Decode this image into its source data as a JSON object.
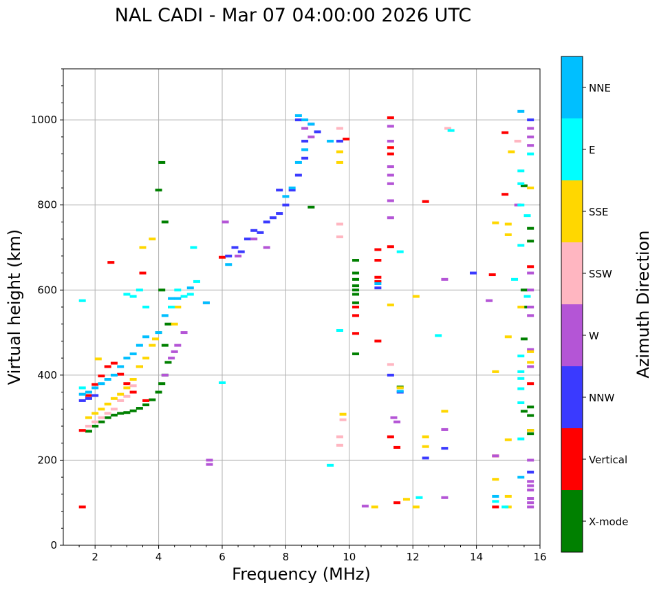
{
  "chart_data": {
    "type": "scatter",
    "title": "NAL CADI - Mar 07 04:00:00 2026 UTC",
    "xlabel": "Frequency (MHz)",
    "ylabel": "Virtual height (km)",
    "xlim": [
      1,
      16
    ],
    "ylim": [
      0,
      1120
    ],
    "xticks": [
      2,
      4,
      6,
      8,
      10,
      12,
      14,
      16
    ],
    "yticks": [
      0,
      200,
      400,
      600,
      800,
      1000
    ],
    "grid": true,
    "colorbar": {
      "label": "Azimuth Direction",
      "categories": [
        "X-mode",
        "Vertical",
        "NNW",
        "W",
        "SSW",
        "SSE",
        "E",
        "NNE"
      ],
      "colors": [
        "#008000",
        "#ff0000",
        "#3a3aff",
        "#b455d6",
        "#ffb6c1",
        "#ffd700",
        "#00ffff",
        "#00bfff"
      ]
    },
    "series": [
      {
        "name": "X-mode",
        "points": [
          [
            1.8,
            268
          ],
          [
            2,
            280
          ],
          [
            2.2,
            290
          ],
          [
            2.4,
            300
          ],
          [
            2.6,
            306
          ],
          [
            2.8,
            310
          ],
          [
            3,
            312
          ],
          [
            3.2,
            316
          ],
          [
            3.4,
            322
          ],
          [
            3.6,
            330
          ],
          [
            3.8,
            342
          ],
          [
            4,
            360
          ],
          [
            4.1,
            380
          ],
          [
            4.2,
            400
          ],
          [
            4.3,
            430
          ],
          [
            4.2,
            470
          ],
          [
            4.3,
            520
          ],
          [
            4.4,
            560
          ],
          [
            4.1,
            600
          ],
          [
            4.2,
            760
          ],
          [
            4,
            835
          ],
          [
            4.1,
            900
          ],
          [
            10.2,
            670
          ],
          [
            10.2,
            640
          ],
          [
            10.2,
            625
          ],
          [
            10.2,
            610
          ],
          [
            10.2,
            600
          ],
          [
            10.2,
            590
          ],
          [
            10.2,
            570
          ],
          [
            10.2,
            450
          ],
          [
            8.8,
            795
          ],
          [
            15.5,
            845
          ],
          [
            15.7,
            745
          ],
          [
            15.7,
            715
          ],
          [
            15.5,
            600
          ],
          [
            15.5,
            560
          ],
          [
            15.5,
            485
          ],
          [
            15.7,
            325
          ],
          [
            15.7,
            305
          ],
          [
            15.5,
            315
          ],
          [
            15.7,
            270
          ],
          [
            15.7,
            262
          ],
          [
            11.6,
            372
          ]
        ]
      },
      {
        "name": "Vertical",
        "points": [
          [
            1.6,
            90
          ],
          [
            1.6,
            270
          ],
          [
            1.8,
            352
          ],
          [
            2,
            378
          ],
          [
            2.2,
            398
          ],
          [
            2.4,
            420
          ],
          [
            2.6,
            428
          ],
          [
            2.8,
            402
          ],
          [
            3,
            380
          ],
          [
            3.2,
            360
          ],
          [
            3.4,
            420
          ],
          [
            3.6,
            340
          ],
          [
            3.5,
            640
          ],
          [
            2.5,
            665
          ],
          [
            6,
            677
          ],
          [
            10.2,
            498
          ],
          [
            10.2,
            560
          ],
          [
            10.2,
            540
          ],
          [
            10.9,
            695
          ],
          [
            10.9,
            670
          ],
          [
            10.9,
            630
          ],
          [
            10.9,
            620
          ],
          [
            10.9,
            480
          ],
          [
            11.3,
            1005
          ],
          [
            11.3,
            935
          ],
          [
            11.3,
            920
          ],
          [
            11.3,
            702
          ],
          [
            11.3,
            255
          ],
          [
            11.5,
            230
          ],
          [
            11.5,
            100
          ],
          [
            12.4,
            808
          ],
          [
            14.5,
            636
          ],
          [
            14.9,
            970
          ],
          [
            14.9,
            825
          ],
          [
            15.7,
            655
          ],
          [
            15.7,
            380
          ],
          [
            14.6,
            210
          ],
          [
            14.6,
            90
          ],
          [
            9.9,
            955
          ]
        ]
      },
      {
        "name": "NNW",
        "points": [
          [
            1.6,
            340
          ],
          [
            1.8,
            345
          ],
          [
            2,
            352
          ],
          [
            6.2,
            680
          ],
          [
            6.4,
            700
          ],
          [
            6.6,
            690
          ],
          [
            6.8,
            720
          ],
          [
            7,
            740
          ],
          [
            7.2,
            735
          ],
          [
            7.4,
            760
          ],
          [
            7.6,
            770
          ],
          [
            7.8,
            780
          ],
          [
            8,
            800
          ],
          [
            8.2,
            835
          ],
          [
            8.4,
            870
          ],
          [
            8.6,
            910
          ],
          [
            8.6,
            950
          ],
          [
            8.4,
            1000
          ],
          [
            8.8,
            990
          ],
          [
            9,
            972
          ],
          [
            7.8,
            835
          ],
          [
            10.9,
            605
          ],
          [
            11.3,
            400
          ],
          [
            11.6,
            360
          ],
          [
            12.4,
            205
          ],
          [
            13,
            228
          ],
          [
            13.9,
            640
          ],
          [
            15.7,
            1000
          ],
          [
            15.7,
            172
          ],
          [
            9.7,
            950
          ]
        ]
      },
      {
        "name": "W",
        "points": [
          [
            4.2,
            400
          ],
          [
            4.4,
            440
          ],
          [
            4.6,
            470
          ],
          [
            4.8,
            500
          ],
          [
            4.5,
            455
          ],
          [
            5.5,
            570
          ],
          [
            6.1,
            760
          ],
          [
            6.5,
            680
          ],
          [
            7,
            720
          ],
          [
            7.4,
            700
          ],
          [
            8.6,
            980
          ],
          [
            8.8,
            960
          ],
          [
            11.3,
            985
          ],
          [
            11.3,
            950
          ],
          [
            11.3,
            890
          ],
          [
            11.3,
            870
          ],
          [
            11.3,
            850
          ],
          [
            11.3,
            810
          ],
          [
            11.3,
            770
          ],
          [
            11.5,
            290
          ],
          [
            11.4,
            300
          ],
          [
            13,
            625
          ],
          [
            13,
            272
          ],
          [
            13,
            112
          ],
          [
            14.4,
            575
          ],
          [
            14.6,
            210
          ],
          [
            15.3,
            800
          ],
          [
            15.7,
            980
          ],
          [
            15.7,
            960
          ],
          [
            15.7,
            940
          ],
          [
            15.7,
            640
          ],
          [
            15.7,
            600
          ],
          [
            15.7,
            560
          ],
          [
            15.7,
            540
          ],
          [
            15.7,
            460
          ],
          [
            15.7,
            420
          ],
          [
            15.7,
            200
          ],
          [
            15.7,
            150
          ],
          [
            15.7,
            140
          ],
          [
            15.7,
            130
          ],
          [
            15.7,
            110
          ],
          [
            15.7,
            100
          ],
          [
            15.7,
            90
          ],
          [
            5.6,
            190
          ],
          [
            5.6,
            200
          ],
          [
            10.5,
            92
          ]
        ]
      },
      {
        "name": "SSW",
        "points": [
          [
            1.8,
            280
          ],
          [
            2,
            290
          ],
          [
            2.2,
            300
          ],
          [
            2.4,
            310
          ],
          [
            2.6,
            320
          ],
          [
            2.8,
            340
          ],
          [
            3,
            350
          ],
          [
            3.2,
            375
          ],
          [
            9.7,
            980
          ],
          [
            9.7,
            755
          ],
          [
            9.7,
            725
          ],
          [
            9.7,
            255
          ],
          [
            9.7,
            235
          ],
          [
            9.8,
            295
          ],
          [
            11.3,
            425
          ],
          [
            13.1,
            980
          ],
          [
            15.3,
            950
          ]
        ]
      },
      {
        "name": "SSE",
        "points": [
          [
            1.8,
            300
          ],
          [
            2,
            310
          ],
          [
            2.2,
            320
          ],
          [
            2.4,
            332
          ],
          [
            2.6,
            345
          ],
          [
            2.8,
            355
          ],
          [
            3,
            370
          ],
          [
            3.2,
            390
          ],
          [
            3.4,
            420
          ],
          [
            3.6,
            440
          ],
          [
            3.8,
            470
          ],
          [
            3.9,
            485
          ],
          [
            4,
            500
          ],
          [
            4.5,
            520
          ],
          [
            4.6,
            560
          ],
          [
            2.1,
            438
          ],
          [
            3.5,
            700
          ],
          [
            3.8,
            720
          ],
          [
            9.7,
            925
          ],
          [
            9.7,
            900
          ],
          [
            10.8,
            90
          ],
          [
            11.3,
            565
          ],
          [
            11.6,
            370
          ],
          [
            11.8,
            108
          ],
          [
            12.1,
            585
          ],
          [
            12.1,
            90
          ],
          [
            12.4,
            255
          ],
          [
            12.4,
            232
          ],
          [
            13,
            315
          ],
          [
            14.6,
            758
          ],
          [
            14.6,
            408
          ],
          [
            14.6,
            155
          ],
          [
            15,
            755
          ],
          [
            15,
            730
          ],
          [
            15,
            490
          ],
          [
            15,
            115
          ],
          [
            15,
            90
          ],
          [
            15.1,
            925
          ],
          [
            15,
            248
          ],
          [
            15.4,
            560
          ],
          [
            15.7,
            840
          ],
          [
            15.7,
            455
          ],
          [
            15.7,
            430
          ],
          [
            15.7,
            270
          ],
          [
            9.8,
            308
          ]
        ]
      },
      {
        "name": "E",
        "points": [
          [
            1.6,
            370
          ],
          [
            1.6,
            575
          ],
          [
            3,
            590
          ],
          [
            3.2,
            585
          ],
          [
            3.4,
            600
          ],
          [
            3.6,
            560
          ],
          [
            4.4,
            560
          ],
          [
            4.6,
            600
          ],
          [
            4.8,
            585
          ],
          [
            5,
            590
          ],
          [
            5.2,
            620
          ],
          [
            5.1,
            700
          ],
          [
            6,
            382
          ],
          [
            9.4,
            188
          ],
          [
            9.7,
            505
          ],
          [
            11.6,
            690
          ],
          [
            12.2,
            112
          ],
          [
            12.8,
            493
          ],
          [
            14.6,
            103
          ],
          [
            14.9,
            90
          ],
          [
            15.2,
            625
          ],
          [
            15.4,
            880
          ],
          [
            15.4,
            850
          ],
          [
            15.4,
            800
          ],
          [
            15.4,
            705
          ],
          [
            15.4,
            445
          ],
          [
            15.4,
            408
          ],
          [
            15.4,
            392
          ],
          [
            15.4,
            368
          ],
          [
            15.4,
            335
          ],
          [
            15.4,
            250
          ],
          [
            15.6,
            775
          ],
          [
            15.6,
            585
          ],
          [
            15.7,
            920
          ],
          [
            13.2,
            975
          ]
        ]
      },
      {
        "name": "NNE",
        "points": [
          [
            1.6,
            355
          ],
          [
            1.8,
            360
          ],
          [
            2,
            370
          ],
          [
            2.2,
            380
          ],
          [
            2.4,
            390
          ],
          [
            2.6,
            400
          ],
          [
            2.8,
            420
          ],
          [
            3,
            440
          ],
          [
            3.2,
            450
          ],
          [
            3.4,
            470
          ],
          [
            3.6,
            490
          ],
          [
            4,
            500
          ],
          [
            4.2,
            540
          ],
          [
            4.4,
            580
          ],
          [
            4.6,
            580
          ],
          [
            5,
            605
          ],
          [
            6.2,
            660
          ],
          [
            8,
            820
          ],
          [
            8.2,
            840
          ],
          [
            8.4,
            900
          ],
          [
            8.6,
            930
          ],
          [
            8.4,
            1010
          ],
          [
            8.6,
            1000
          ],
          [
            8.8,
            990
          ],
          [
            9.4,
            950
          ],
          [
            10.9,
            615
          ],
          [
            11.6,
            362
          ],
          [
            14.6,
            115
          ],
          [
            15.4,
            1020
          ],
          [
            15.4,
            160
          ],
          [
            5.5,
            570
          ]
        ]
      }
    ]
  }
}
